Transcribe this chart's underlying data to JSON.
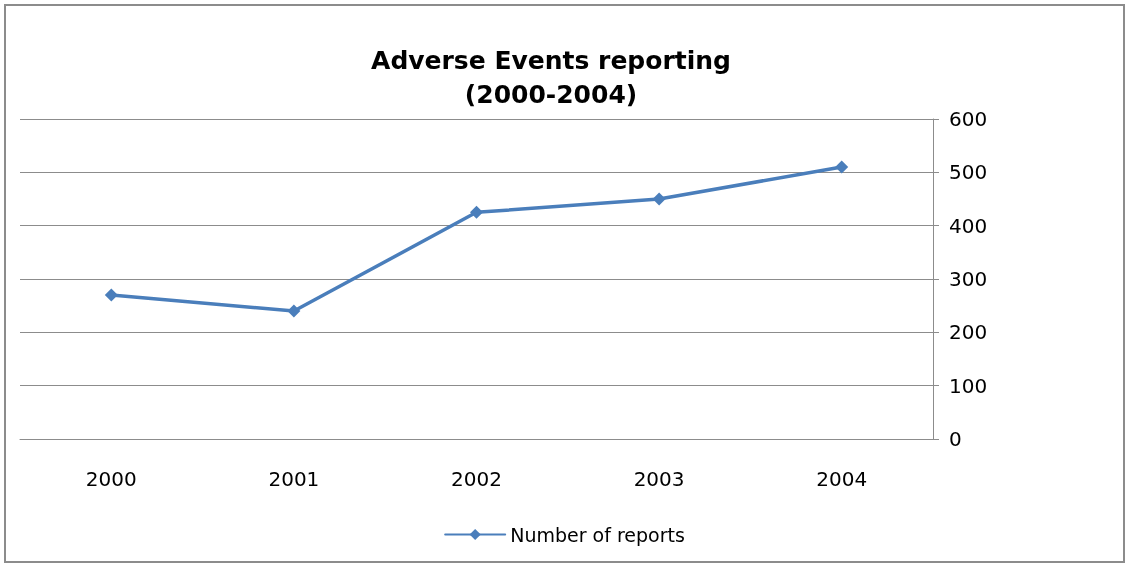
{
  "chart_data": {
    "type": "line",
    "title": "Adverse Events reporting\n(2000-2004)",
    "categories": [
      "2000",
      "2001",
      "2002",
      "2003",
      "2004"
    ],
    "series": [
      {
        "name": "Number of reports",
        "color": "#4a7ebb",
        "values": [
          270,
          240,
          425,
          450,
          510
        ]
      }
    ],
    "ylim": [
      0,
      600
    ],
    "yticks": [
      0,
      100,
      200,
      300,
      400,
      500,
      600
    ],
    "grid": "y",
    "legend": "bottom",
    "marker": "diamond",
    "line_style": "solid"
  }
}
